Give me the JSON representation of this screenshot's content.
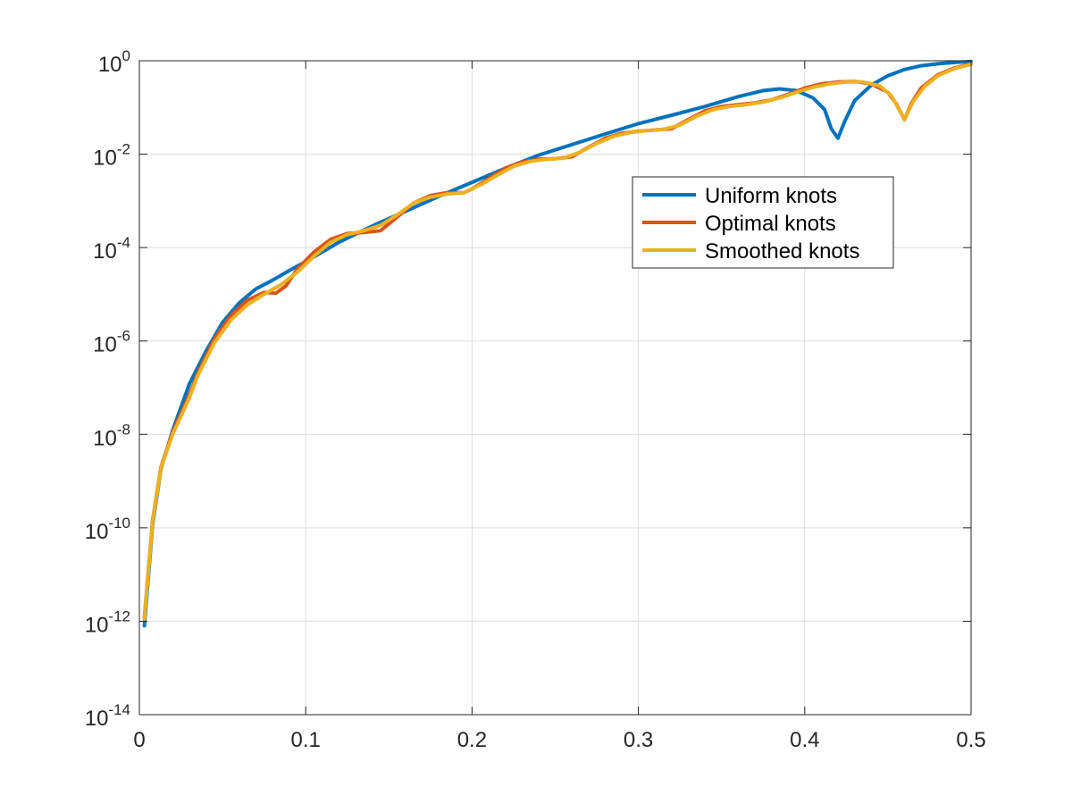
{
  "chart_data": {
    "type": "line",
    "title": "",
    "xlabel": "",
    "ylabel": "",
    "xlim": [
      0,
      0.5
    ],
    "ylim": [
      1e-14,
      1
    ],
    "yscale": "log",
    "grid": true,
    "legend_position": "top-right",
    "x_ticks": [
      {
        "value": 0,
        "label": "0"
      },
      {
        "value": 0.1,
        "label": "0.1"
      },
      {
        "value": 0.2,
        "label": "0.2"
      },
      {
        "value": 0.3,
        "label": "0.3"
      },
      {
        "value": 0.4,
        "label": "0.4"
      },
      {
        "value": 0.5,
        "label": "0.5"
      }
    ],
    "y_ticks": [
      {
        "value": 1e-14,
        "base": "10",
        "exp": "-14"
      },
      {
        "value": 1e-12,
        "base": "10",
        "exp": "-12"
      },
      {
        "value": 1e-10,
        "base": "10",
        "exp": "-10"
      },
      {
        "value": 1e-08,
        "base": "10",
        "exp": "-8"
      },
      {
        "value": 1e-06,
        "base": "10",
        "exp": "-6"
      },
      {
        "value": 0.0001,
        "base": "10",
        "exp": "-4"
      },
      {
        "value": 0.01,
        "base": "10",
        "exp": "-2"
      },
      {
        "value": 1,
        "base": "10",
        "exp": "0"
      }
    ],
    "series": [
      {
        "name": "Uniform knots",
        "color": "#0072BD",
        "points": [
          [
            0.003,
            8e-13
          ],
          [
            0.008,
            1.2e-10
          ],
          [
            0.013,
            1.8e-09
          ],
          [
            0.02,
            1.2e-08
          ],
          [
            0.03,
            1.2e-07
          ],
          [
            0.04,
            6e-07
          ],
          [
            0.05,
            2.5e-06
          ],
          [
            0.06,
            6.5e-06
          ],
          [
            0.07,
            1.3e-05
          ],
          [
            0.08,
            2e-05
          ],
          [
            0.09,
            3.2e-05
          ],
          [
            0.1,
            5e-05
          ],
          [
            0.12,
            0.00013
          ],
          [
            0.14,
            0.00029
          ],
          [
            0.16,
            0.0006
          ],
          [
            0.18,
            0.00125
          ],
          [
            0.2,
            0.0025
          ],
          [
            0.22,
            0.005
          ],
          [
            0.24,
            0.0095
          ],
          [
            0.26,
            0.016
          ],
          [
            0.28,
            0.027
          ],
          [
            0.3,
            0.045
          ],
          [
            0.32,
            0.068
          ],
          [
            0.34,
            0.105
          ],
          [
            0.36,
            0.17
          ],
          [
            0.375,
            0.23
          ],
          [
            0.385,
            0.25
          ],
          [
            0.395,
            0.23
          ],
          [
            0.405,
            0.16
          ],
          [
            0.412,
            0.09
          ],
          [
            0.416,
            0.035
          ],
          [
            0.42,
            0.022
          ],
          [
            0.424,
            0.05
          ],
          [
            0.43,
            0.14
          ],
          [
            0.44,
            0.3
          ],
          [
            0.45,
            0.48
          ],
          [
            0.46,
            0.65
          ],
          [
            0.47,
            0.78
          ],
          [
            0.48,
            0.86
          ],
          [
            0.49,
            0.92
          ],
          [
            0.5,
            0.96
          ]
        ]
      },
      {
        "name": "Optimal knots",
        "color": "#D95319",
        "points": [
          [
            0.003,
            1.2e-12
          ],
          [
            0.008,
            1.5e-10
          ],
          [
            0.013,
            2e-09
          ],
          [
            0.02,
            1.1e-08
          ],
          [
            0.03,
            7e-08
          ],
          [
            0.035,
            2e-07
          ],
          [
            0.045,
            1.1e-06
          ],
          [
            0.055,
            3.5e-06
          ],
          [
            0.065,
            7.5e-06
          ],
          [
            0.075,
            1.1e-05
          ],
          [
            0.082,
            1.05e-05
          ],
          [
            0.088,
            1.5e-05
          ],
          [
            0.095,
            3.5e-05
          ],
          [
            0.105,
            8e-05
          ],
          [
            0.115,
            0.00015
          ],
          [
            0.125,
            0.0002
          ],
          [
            0.135,
            0.00021
          ],
          [
            0.145,
            0.00023
          ],
          [
            0.155,
            0.00045
          ],
          [
            0.165,
            0.0009
          ],
          [
            0.175,
            0.0013
          ],
          [
            0.185,
            0.0015
          ],
          [
            0.195,
            0.0015
          ],
          [
            0.2,
            0.0018
          ],
          [
            0.21,
            0.003
          ],
          [
            0.22,
            0.005
          ],
          [
            0.23,
            0.0068
          ],
          [
            0.24,
            0.0078
          ],
          [
            0.25,
            0.008
          ],
          [
            0.26,
            0.0088
          ],
          [
            0.27,
            0.014
          ],
          [
            0.28,
            0.022
          ],
          [
            0.29,
            0.028
          ],
          [
            0.3,
            0.031
          ],
          [
            0.31,
            0.033
          ],
          [
            0.32,
            0.035
          ],
          [
            0.33,
            0.055
          ],
          [
            0.34,
            0.085
          ],
          [
            0.35,
            0.105
          ],
          [
            0.36,
            0.115
          ],
          [
            0.37,
            0.125
          ],
          [
            0.38,
            0.145
          ],
          [
            0.39,
            0.19
          ],
          [
            0.4,
            0.26
          ],
          [
            0.41,
            0.32
          ],
          [
            0.42,
            0.35
          ],
          [
            0.43,
            0.36
          ],
          [
            0.44,
            0.32
          ],
          [
            0.45,
            0.21
          ],
          [
            0.455,
            0.12
          ],
          [
            0.46,
            0.055
          ],
          [
            0.464,
            0.12
          ],
          [
            0.47,
            0.26
          ],
          [
            0.48,
            0.5
          ],
          [
            0.49,
            0.7
          ],
          [
            0.5,
            0.85
          ]
        ]
      },
      {
        "name": "Smoothed knots",
        "color": "#EDB120",
        "points": [
          [
            0.003,
            1.1e-12
          ],
          [
            0.008,
            1.4e-10
          ],
          [
            0.013,
            1.9e-09
          ],
          [
            0.02,
            1e-08
          ],
          [
            0.03,
            6e-08
          ],
          [
            0.035,
            1.8e-07
          ],
          [
            0.045,
            9e-07
          ],
          [
            0.055,
            2.8e-06
          ],
          [
            0.065,
            6e-06
          ],
          [
            0.075,
            1e-05
          ],
          [
            0.085,
            1.6e-05
          ],
          [
            0.095,
            3e-05
          ],
          [
            0.105,
            6.5e-05
          ],
          [
            0.115,
            0.00013
          ],
          [
            0.125,
            0.00019
          ],
          [
            0.135,
            0.00023
          ],
          [
            0.145,
            0.0003
          ],
          [
            0.155,
            0.0005
          ],
          [
            0.165,
            0.0009
          ],
          [
            0.175,
            0.0012
          ],
          [
            0.185,
            0.0014
          ],
          [
            0.195,
            0.0015
          ],
          [
            0.205,
            0.0022
          ],
          [
            0.215,
            0.0035
          ],
          [
            0.225,
            0.0055
          ],
          [
            0.235,
            0.007
          ],
          [
            0.245,
            0.0078
          ],
          [
            0.255,
            0.0082
          ],
          [
            0.265,
            0.011
          ],
          [
            0.275,
            0.017
          ],
          [
            0.285,
            0.024
          ],
          [
            0.295,
            0.029
          ],
          [
            0.305,
            0.032
          ],
          [
            0.315,
            0.034
          ],
          [
            0.325,
            0.042
          ],
          [
            0.335,
            0.065
          ],
          [
            0.345,
            0.09
          ],
          [
            0.355,
            0.105
          ],
          [
            0.365,
            0.115
          ],
          [
            0.375,
            0.13
          ],
          [
            0.385,
            0.16
          ],
          [
            0.395,
            0.21
          ],
          [
            0.405,
            0.27
          ],
          [
            0.415,
            0.32
          ],
          [
            0.425,
            0.35
          ],
          [
            0.435,
            0.35
          ],
          [
            0.445,
            0.29
          ],
          [
            0.452,
            0.18
          ],
          [
            0.46,
            0.055
          ],
          [
            0.465,
            0.13
          ],
          [
            0.472,
            0.28
          ],
          [
            0.48,
            0.48
          ],
          [
            0.49,
            0.68
          ],
          [
            0.5,
            0.84
          ]
        ]
      }
    ]
  }
}
